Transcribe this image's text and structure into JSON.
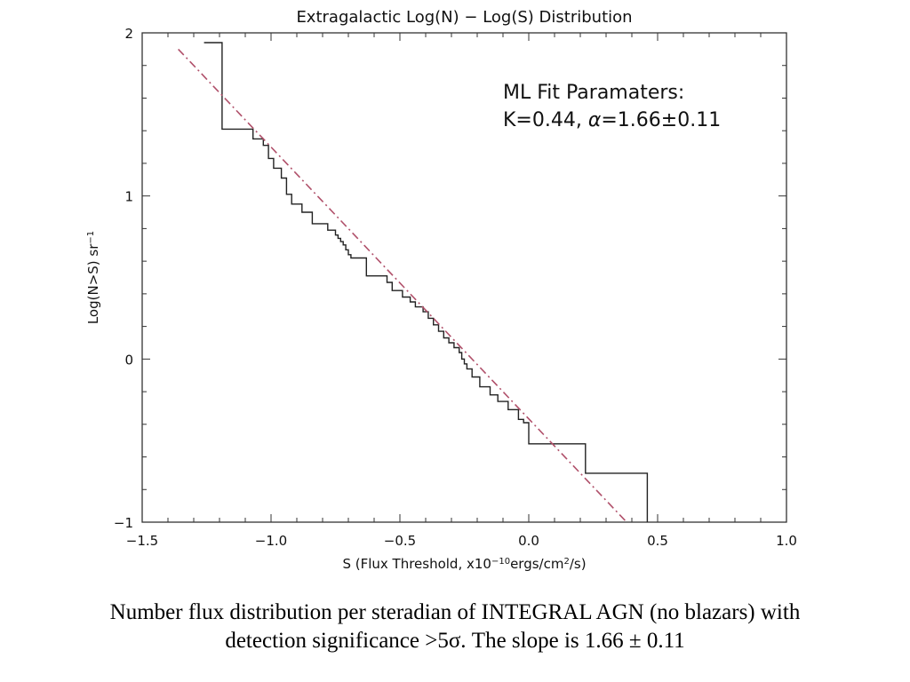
{
  "chart_data": {
    "type": "line",
    "title": "Extragalactic Log(N) − Log(S) Distribution",
    "xlabel": "S  (Flux Threshold, x10",
    "xlabel_sup1": "−10",
    "xlabel_mid": "ergs/cm",
    "xlabel_sup2": "2",
    "xlabel_end": "/s)",
    "ylabel": "Log(N>S) sr",
    "ylabel_sup": "−1",
    "xlim": [
      -1.5,
      1.0
    ],
    "ylim": [
      -1.0,
      2.0
    ],
    "x_ticks": [
      -1.5,
      -1.0,
      -0.5,
      0.0,
      0.5,
      1.0
    ],
    "x_tick_labels": [
      "−1.5",
      "−1.0",
      "−0.5",
      "0.0",
      "0.5",
      "1.0"
    ],
    "y_ticks": [
      -1,
      0,
      1,
      2
    ],
    "y_tick_labels": [
      "−1",
      "0",
      "1",
      "2"
    ],
    "grid": false,
    "annotation": {
      "line1": "ML Fit Paramaters:",
      "line2_prefix": "K=0.44,  ",
      "line2_alpha": "α",
      "line2_suffix": "=1.66±0.11"
    },
    "series": [
      {
        "style": "step",
        "color": "#222222",
        "points": [
          [
            -1.26,
            1.94
          ],
          [
            -1.19,
            1.94
          ],
          [
            -1.19,
            1.41
          ],
          [
            -1.07,
            1.41
          ],
          [
            -1.07,
            1.35
          ],
          [
            -1.03,
            1.35
          ],
          [
            -1.03,
            1.31
          ],
          [
            -1.01,
            1.31
          ],
          [
            -1.01,
            1.23
          ],
          [
            -0.99,
            1.23
          ],
          [
            -0.99,
            1.17
          ],
          [
            -0.96,
            1.17
          ],
          [
            -0.96,
            1.11
          ],
          [
            -0.94,
            1.11
          ],
          [
            -0.94,
            1.01
          ],
          [
            -0.92,
            1.01
          ],
          [
            -0.92,
            0.95
          ],
          [
            -0.88,
            0.95
          ],
          [
            -0.88,
            0.9
          ],
          [
            -0.84,
            0.9
          ],
          [
            -0.84,
            0.83
          ],
          [
            -0.78,
            0.83
          ],
          [
            -0.78,
            0.79
          ],
          [
            -0.75,
            0.79
          ],
          [
            -0.75,
            0.76
          ],
          [
            -0.74,
            0.76
          ],
          [
            -0.74,
            0.74
          ],
          [
            -0.73,
            0.74
          ],
          [
            -0.73,
            0.72
          ],
          [
            -0.72,
            0.72
          ],
          [
            -0.72,
            0.7
          ],
          [
            -0.71,
            0.7
          ],
          [
            -0.71,
            0.67
          ],
          [
            -0.7,
            0.67
          ],
          [
            -0.7,
            0.64
          ],
          [
            -0.69,
            0.64
          ],
          [
            -0.69,
            0.62
          ],
          [
            -0.63,
            0.62
          ],
          [
            -0.63,
            0.51
          ],
          [
            -0.55,
            0.51
          ],
          [
            -0.55,
            0.47
          ],
          [
            -0.53,
            0.47
          ],
          [
            -0.53,
            0.42
          ],
          [
            -0.49,
            0.42
          ],
          [
            -0.49,
            0.38
          ],
          [
            -0.46,
            0.38
          ],
          [
            -0.46,
            0.35
          ],
          [
            -0.44,
            0.35
          ],
          [
            -0.44,
            0.32
          ],
          [
            -0.41,
            0.32
          ],
          [
            -0.41,
            0.29
          ],
          [
            -0.39,
            0.29
          ],
          [
            -0.39,
            0.25
          ],
          [
            -0.37,
            0.25
          ],
          [
            -0.37,
            0.21
          ],
          [
            -0.35,
            0.21
          ],
          [
            -0.35,
            0.17
          ],
          [
            -0.33,
            0.17
          ],
          [
            -0.33,
            0.13
          ],
          [
            -0.31,
            0.13
          ],
          [
            -0.31,
            0.1
          ],
          [
            -0.29,
            0.1
          ],
          [
            -0.29,
            0.07
          ],
          [
            -0.27,
            0.07
          ],
          [
            -0.27,
            0.04
          ],
          [
            -0.26,
            0.04
          ],
          [
            -0.26,
            0.0
          ],
          [
            -0.25,
            0.0
          ],
          [
            -0.25,
            -0.03
          ],
          [
            -0.24,
            -0.03
          ],
          [
            -0.24,
            -0.06
          ],
          [
            -0.22,
            -0.06
          ],
          [
            -0.22,
            -0.11
          ],
          [
            -0.19,
            -0.11
          ],
          [
            -0.19,
            -0.17
          ],
          [
            -0.15,
            -0.17
          ],
          [
            -0.15,
            -0.22
          ],
          [
            -0.12,
            -0.22
          ],
          [
            -0.12,
            -0.26
          ],
          [
            -0.08,
            -0.26
          ],
          [
            -0.08,
            -0.31
          ],
          [
            -0.04,
            -0.31
          ],
          [
            -0.04,
            -0.37
          ],
          [
            -0.02,
            -0.37
          ],
          [
            -0.02,
            -0.39
          ],
          [
            0.0,
            -0.39
          ],
          [
            0.0,
            -0.52
          ],
          [
            0.22,
            -0.52
          ],
          [
            0.22,
            -0.7
          ],
          [
            0.46,
            -0.7
          ],
          [
            0.46,
            -1.0
          ]
        ]
      },
      {
        "style": "dash-dot",
        "color": "#b0506a",
        "points": [
          [
            -1.36,
            1.9
          ],
          [
            0.38,
            -1.0
          ]
        ]
      }
    ]
  },
  "caption": {
    "line1": "Number flux distribution per steradian of INTEGRAL AGN (no blazars) with",
    "line2": "detection significance >5σ. The slope is 1.66 ± 0.11"
  }
}
